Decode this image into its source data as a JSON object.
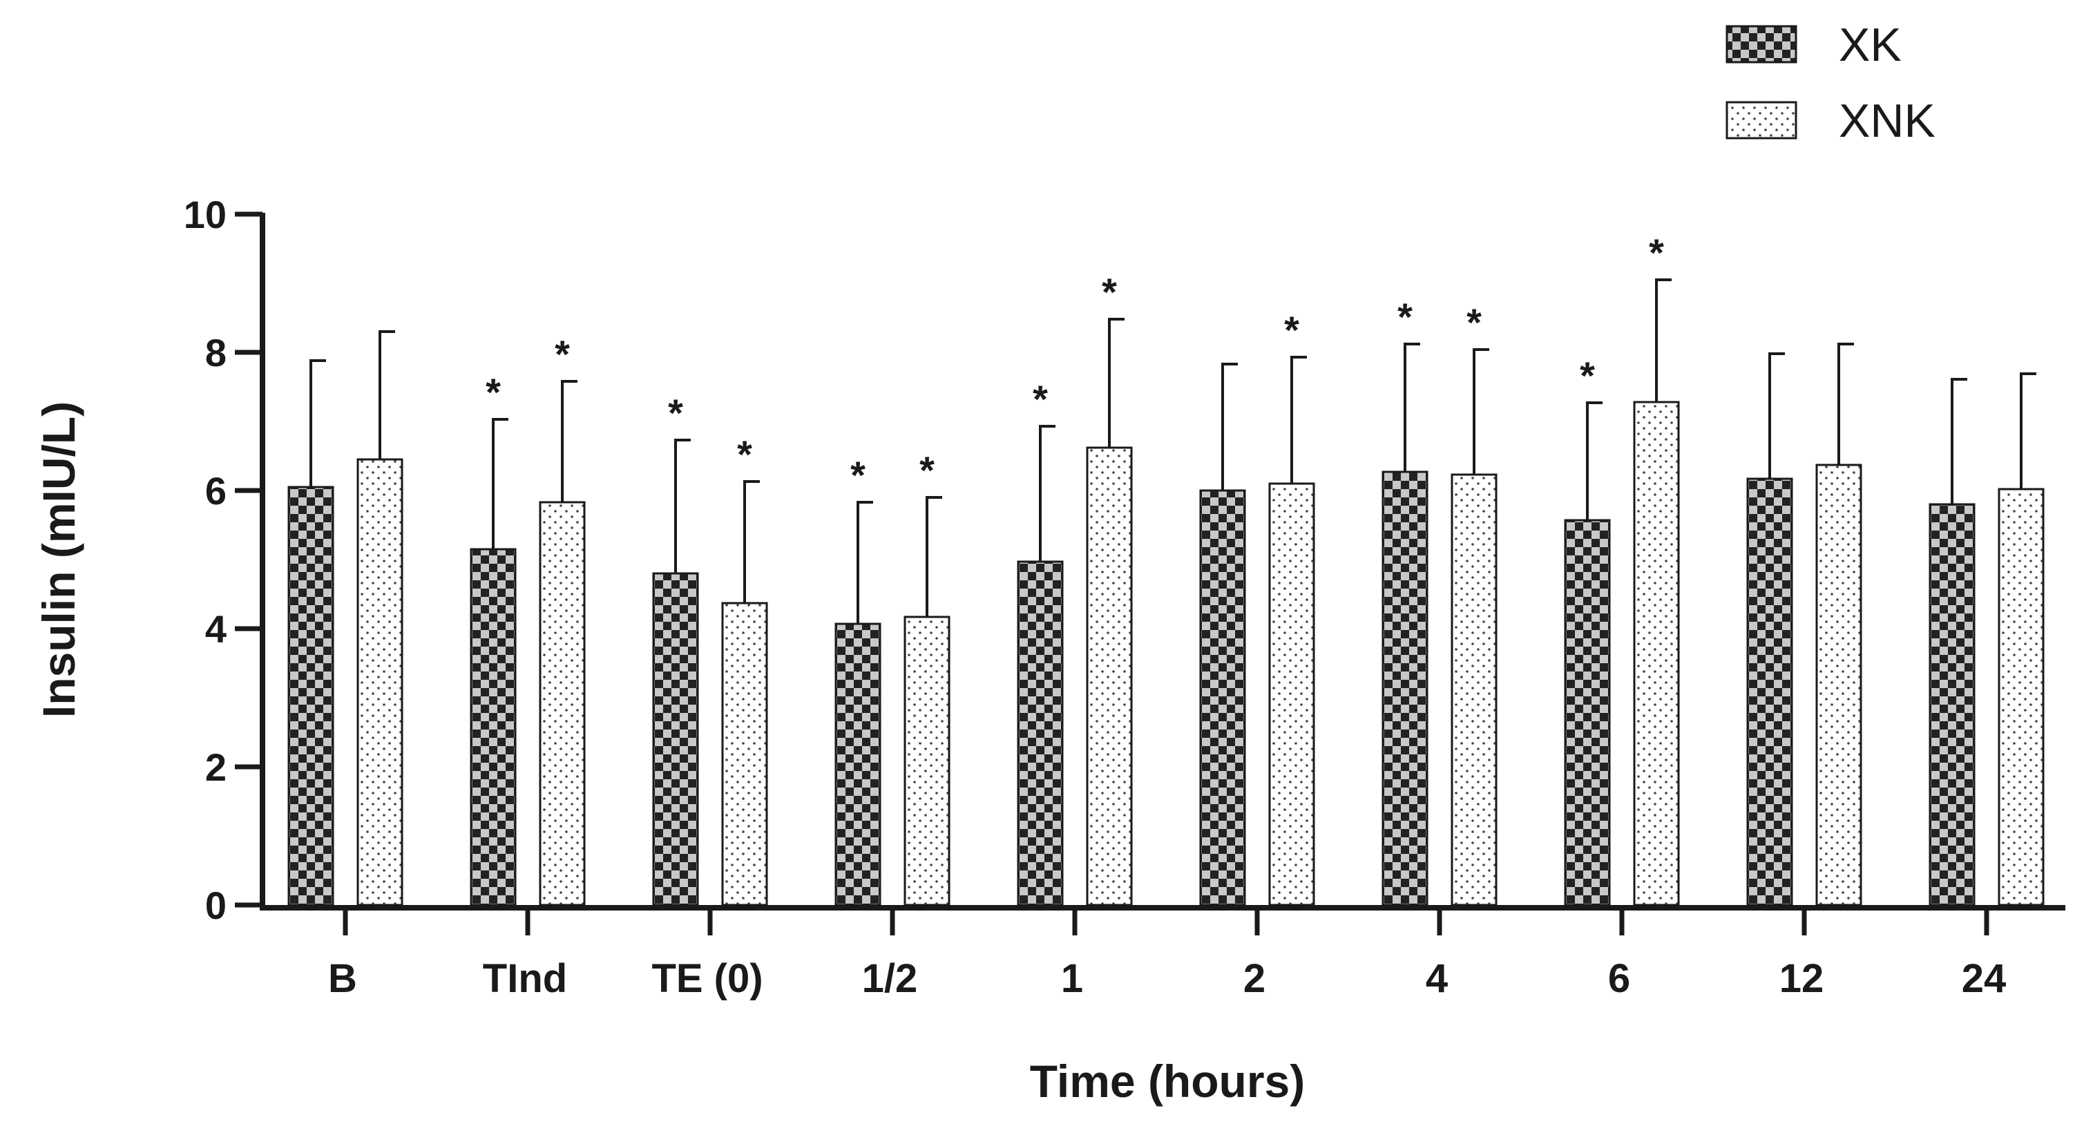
{
  "chart_data": {
    "type": "bar",
    "title": "",
    "xlabel": "Time (hours)",
    "ylabel": "Insulin (mIU/L)",
    "ylim": [
      0,
      10
    ],
    "yticks": [
      0,
      2,
      4,
      6,
      8,
      10
    ],
    "grid": false,
    "legend_position": "top-right",
    "categories": [
      "B",
      "TInd",
      "TE (0)",
      "1/2",
      "1",
      "2",
      "4",
      "6",
      "12",
      "24"
    ],
    "series": [
      {
        "name": "XK",
        "pattern": "checker",
        "values": [
          6.05,
          5.15,
          4.8,
          4.07,
          4.97,
          6.0,
          6.27,
          5.57,
          6.17,
          5.8
        ],
        "error": [
          1.83,
          1.88,
          1.93,
          1.76,
          1.96,
          1.83,
          1.85,
          1.7,
          1.81,
          1.81
        ],
        "significant": [
          false,
          true,
          true,
          true,
          true,
          false,
          true,
          true,
          false,
          false
        ]
      },
      {
        "name": "XNK",
        "pattern": "dots",
        "values": [
          6.45,
          5.83,
          4.37,
          4.17,
          6.62,
          6.1,
          6.23,
          7.28,
          6.37,
          6.02
        ],
        "error": [
          1.85,
          1.75,
          1.76,
          1.73,
          1.86,
          1.83,
          1.81,
          1.77,
          1.75,
          1.67
        ],
        "significant": [
          false,
          true,
          true,
          true,
          true,
          true,
          true,
          true,
          false,
          false
        ]
      }
    ],
    "significance_marker": "*"
  },
  "colors": {
    "axis": "#1a1a1a",
    "bar_edge": "#1a1a1a",
    "checker_dark": "#222222",
    "checker_light": "#c8c8c8",
    "dot_fill": "#444444",
    "background": "#ffffff"
  }
}
